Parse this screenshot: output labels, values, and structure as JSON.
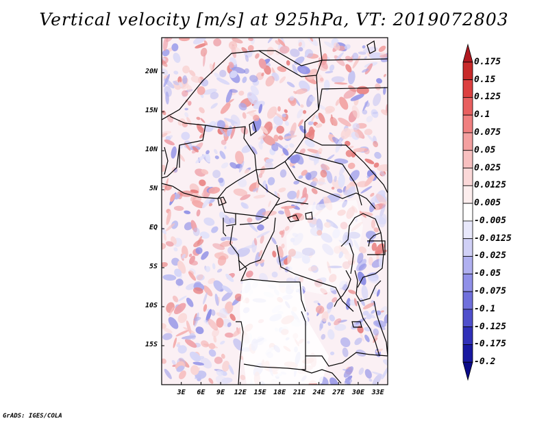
{
  "title": "Vertical velocity [m/s] at 925hPa, VT: 2019072803",
  "footer": "GrADS: IGES/COLA",
  "map": {
    "lat_range": [
      -20,
      24.5
    ],
    "lon_range": [
      0,
      34.5
    ],
    "lat_ticks": [
      {
        "label": "20N",
        "lat": 20
      },
      {
        "label": "15N",
        "lat": 15
      },
      {
        "label": "10N",
        "lat": 10
      },
      {
        "label": "5N",
        "lat": 5
      },
      {
        "label": "EQ",
        "lat": 0
      },
      {
        "label": "5S",
        "lat": -5
      },
      {
        "label": "10S",
        "lat": -10
      },
      {
        "label": "15S",
        "lat": -15
      }
    ],
    "lon_ticks": [
      {
        "label": "3E",
        "lon": 3
      },
      {
        "label": "6E",
        "lon": 6
      },
      {
        "label": "9E",
        "lon": 9
      },
      {
        "label": "12E",
        "lon": 12
      },
      {
        "label": "15E",
        "lon": 15
      },
      {
        "label": "18E",
        "lon": 18
      },
      {
        "label": "21E",
        "lon": 21
      },
      {
        "label": "24E",
        "lon": 24
      },
      {
        "label": "27E",
        "lon": 27
      },
      {
        "label": "30E",
        "lon": 30
      },
      {
        "label": "33E",
        "lon": 33
      }
    ]
  },
  "colorbar": {
    "labels": [
      "0.175",
      "0.15",
      "0.125",
      "0.1",
      "0.075",
      "0.05",
      "0.025",
      "0.0125",
      "0.005",
      "-0.005",
      "-0.0125",
      "-0.025",
      "-0.05",
      "-0.075",
      "-0.1",
      "-0.125",
      "-0.175",
      "-0.2"
    ],
    "colors": [
      "#b01820",
      "#c82a2a",
      "#dc4040",
      "#e86060",
      "#f08080",
      "#f4a0a0",
      "#f8c0c0",
      "#fbd8d8",
      "#fdeeee",
      "#ffffff",
      "#e8e8fb",
      "#d0d0f6",
      "#b0b0f0",
      "#9090e8",
      "#7070dc",
      "#5050cc",
      "#3030b8",
      "#1818a0",
      "#0a0a88"
    ]
  }
}
